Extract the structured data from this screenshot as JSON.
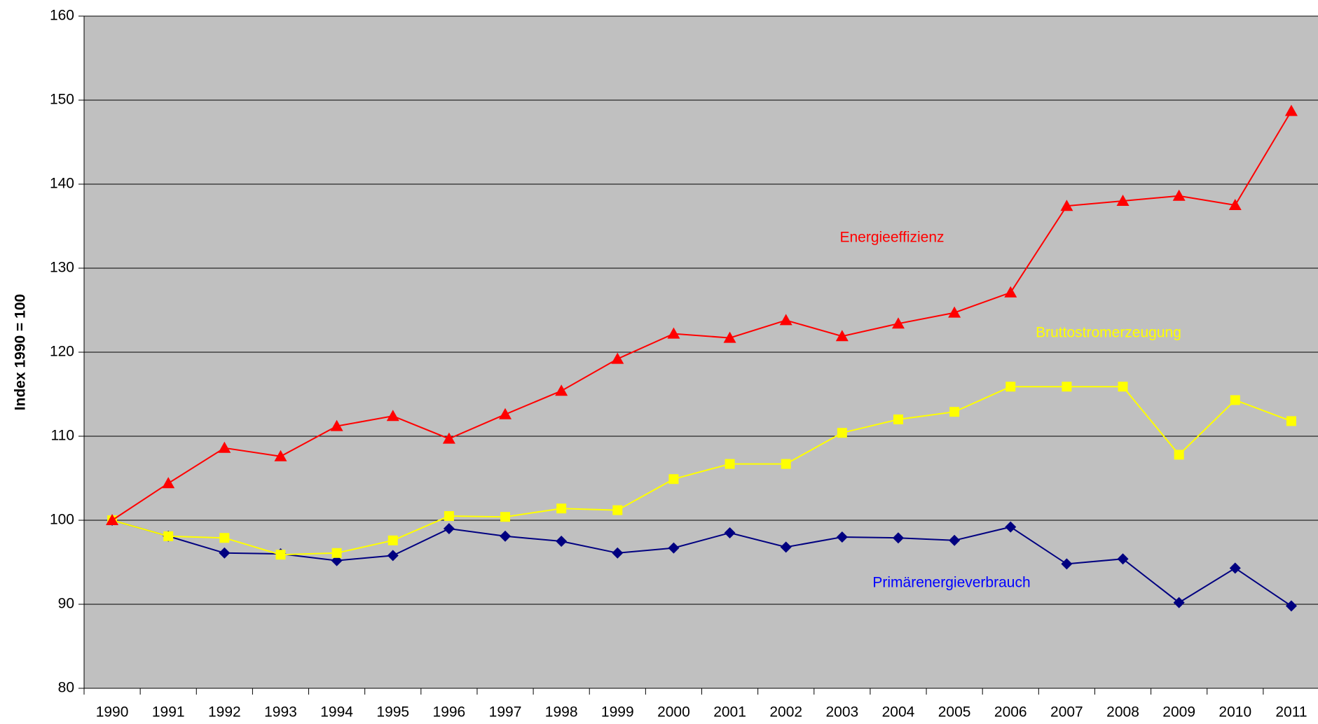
{
  "chart_data": {
    "type": "line",
    "y_label": "Index 1990 = 100",
    "categories": [
      "1990",
      "1991",
      "1992",
      "1993",
      "1994",
      "1995",
      "1996",
      "1997",
      "1998",
      "1999",
      "2000",
      "2001",
      "2002",
      "2003",
      "2004",
      "2005",
      "2006",
      "2007",
      "2008",
      "2009",
      "2010",
      "2011"
    ],
    "series": [
      {
        "name": "Energieeffizienz",
        "color": "#ff0000",
        "label_color": "#ff0000",
        "marker": "triangle",
        "values": [
          100,
          104.4,
          108.6,
          107.6,
          111.2,
          112.4,
          109.7,
          112.6,
          115.4,
          119.2,
          122.2,
          121.7,
          123.8,
          121.9,
          123.4,
          124.7,
          127.1,
          137.4,
          138,
          138.6,
          137.5,
          148.7
        ]
      },
      {
        "name": "Bruttostromerzeugung",
        "color": "#ffff00",
        "label_color": "#ffff00",
        "marker": "square",
        "values": [
          100,
          98.1,
          97.9,
          95.9,
          96.1,
          97.6,
          100.5,
          100.4,
          101.4,
          101.2,
          104.9,
          106.7,
          106.7,
          110.4,
          112,
          112.9,
          115.9,
          115.9,
          115.9,
          107.8,
          114.3,
          111.8
        ]
      },
      {
        "name": "Primärenergieverbrauch",
        "color": "#000080",
        "label_color": "#0000ff",
        "marker": "diamond",
        "values": [
          100,
          98.1,
          96.1,
          96,
          95.2,
          95.8,
          99,
          98.1,
          97.5,
          96.1,
          96.7,
          98.5,
          96.8,
          98,
          97.9,
          97.6,
          99.2,
          94.8,
          95.4,
          90.2,
          94.3,
          89.8
        ]
      }
    ],
    "ylim": [
      80,
      160
    ],
    "yticks": [
      80,
      90,
      100,
      110,
      120,
      130,
      140,
      150,
      160
    ],
    "grid": true,
    "plot_background": "#c0c0c0"
  }
}
